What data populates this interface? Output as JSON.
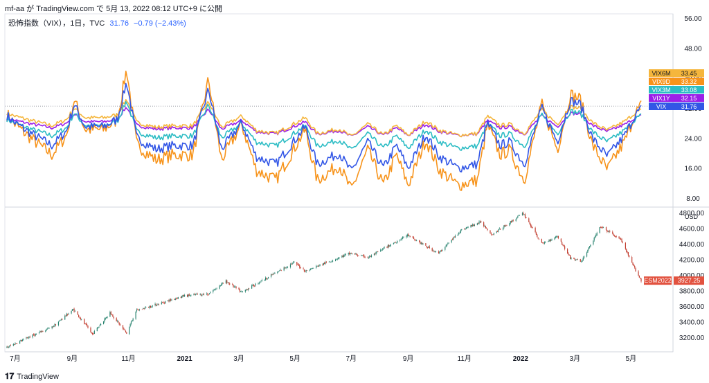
{
  "header": {
    "text": "mf-aa が TradingView.com で 5月 13, 2022 08:12 UTC+9 に公開"
  },
  "legend": {
    "symbol": "恐怖指数（VIX），1日，TVC",
    "last": "31.76",
    "change": "−0.79 (−2.43%)"
  },
  "footer": {
    "logo": "𝟏𝟕",
    "brand": "TradingView"
  },
  "colors": {
    "vix": "#3256e6",
    "vix9d": "#f7931a",
    "vix3m": "#2bbcc4",
    "vix6m": "#f5b63c",
    "vix1y": "#9b1fe8",
    "es_up": "#26826e",
    "es_down": "#c0392b",
    "badge_es": "#e2523f"
  },
  "chart_data": [
    {
      "type": "line",
      "title": "",
      "y_ticks": [
        "56.00",
        "48.00",
        "40.00",
        "32.00",
        "24.00",
        "16.00",
        "8.00"
      ],
      "ylim": [
        8,
        56
      ],
      "series": [
        {
          "name": "VIX6M",
          "last": "33.45",
          "color": "#f5b63c"
        },
        {
          "name": "VIX9D",
          "last": "33.32",
          "color": "#f7931a"
        },
        {
          "name": "VIX3M",
          "last": "33.08",
          "color": "#2bbcc4"
        },
        {
          "name": "VIX1Y",
          "last": "32.15",
          "color": "#9b1fe8"
        },
        {
          "name": "VIX",
          "last": "31.76",
          "color": "#3256e6"
        }
      ],
      "approx_vix_path": [
        [
          "2020-06-22",
          30
        ],
        [
          "2020-07-01",
          28
        ],
        [
          "2020-07-20",
          25
        ],
        [
          "2020-08-10",
          22
        ],
        [
          "2020-08-26",
          26
        ],
        [
          "2020-09-03",
          33
        ],
        [
          "2020-09-15",
          27
        ],
        [
          "2020-10-05",
          27
        ],
        [
          "2020-10-20",
          29
        ],
        [
          "2020-10-30",
          39
        ],
        [
          "2020-11-10",
          24
        ],
        [
          "2020-12-01",
          21
        ],
        [
          "2020-12-20",
          22
        ],
        [
          "2021-01-10",
          22
        ],
        [
          "2021-01-27",
          37
        ],
        [
          "2021-02-10",
          21
        ],
        [
          "2021-03-04",
          28
        ],
        [
          "2021-03-20",
          19
        ],
        [
          "2021-04-10",
          17
        ],
        [
          "2021-05-12",
          27
        ],
        [
          "2021-05-25",
          17
        ],
        [
          "2021-06-18",
          20
        ],
        [
          "2021-07-01",
          15
        ],
        [
          "2021-07-19",
          23
        ],
        [
          "2021-08-05",
          16
        ],
        [
          "2021-08-19",
          22
        ],
        [
          "2021-09-01",
          16
        ],
        [
          "2021-09-20",
          25
        ],
        [
          "2021-10-05",
          19
        ],
        [
          "2021-10-25",
          16
        ],
        [
          "2021-11-15",
          17
        ],
        [
          "2021-11-26",
          28
        ],
        [
          "2021-12-10",
          22
        ],
        [
          "2021-12-20",
          23
        ],
        [
          "2022-01-05",
          17
        ],
        [
          "2022-01-24",
          32
        ],
        [
          "2022-02-10",
          23
        ],
        [
          "2022-02-24",
          34
        ],
        [
          "2022-03-07",
          33
        ],
        [
          "2022-03-20",
          24
        ],
        [
          "2022-04-05",
          19
        ],
        [
          "2022-04-25",
          25
        ],
        [
          "2022-05-05",
          30
        ],
        [
          "2022-05-12",
          31.76
        ]
      ],
      "price_line": 32.5
    },
    {
      "type": "candlestick",
      "title": "",
      "y_ticks": [
        "4800.00",
        "4600.00",
        "4400.00",
        "4200.00",
        "4000.00",
        "3800.00",
        "3600.00",
        "3400.00",
        "3200.00"
      ],
      "unit": "USD",
      "ylim": [
        3050,
        4800
      ],
      "series": [
        {
          "name": "ESM2022",
          "last": "3927.25"
        }
      ],
      "approx_close_path": [
        [
          "2020-06-22",
          3070
        ],
        [
          "2020-07-15",
          3200
        ],
        [
          "2020-08-10",
          3330
        ],
        [
          "2020-09-02",
          3560
        ],
        [
          "2020-09-23",
          3240
        ],
        [
          "2020-10-12",
          3520
        ],
        [
          "2020-10-30",
          3250
        ],
        [
          "2020-11-09",
          3540
        ],
        [
          "2020-12-01",
          3620
        ],
        [
          "2020-12-31",
          3730
        ],
        [
          "2021-01-27",
          3760
        ],
        [
          "2021-02-15",
          3920
        ],
        [
          "2021-03-04",
          3780
        ],
        [
          "2021-03-31",
          3960
        ],
        [
          "2021-04-30",
          4160
        ],
        [
          "2021-05-12",
          4050
        ],
        [
          "2021-06-30",
          4280
        ],
        [
          "2021-07-19",
          4220
        ],
        [
          "2021-08-31",
          4510
        ],
        [
          "2021-09-30",
          4300
        ],
        [
          "2021-10-04",
          4280
        ],
        [
          "2021-10-29",
          4580
        ],
        [
          "2021-11-19",
          4680
        ],
        [
          "2021-12-01",
          4520
        ],
        [
          "2021-12-31",
          4760
        ],
        [
          "2022-01-04",
          4790
        ],
        [
          "2022-01-24",
          4400
        ],
        [
          "2022-02-10",
          4500
        ],
        [
          "2022-02-24",
          4220
        ],
        [
          "2022-03-08",
          4170
        ],
        [
          "2022-03-29",
          4620
        ],
        [
          "2022-04-20",
          4450
        ],
        [
          "2022-05-02",
          4150
        ],
        [
          "2022-05-12",
          3927.25
        ]
      ]
    }
  ],
  "x_ticks": [
    "7月",
    "9月",
    "11月",
    "2021",
    "3月",
    "5月",
    "7月",
    "9月",
    "11月",
    "2022",
    "3月",
    "5月"
  ]
}
